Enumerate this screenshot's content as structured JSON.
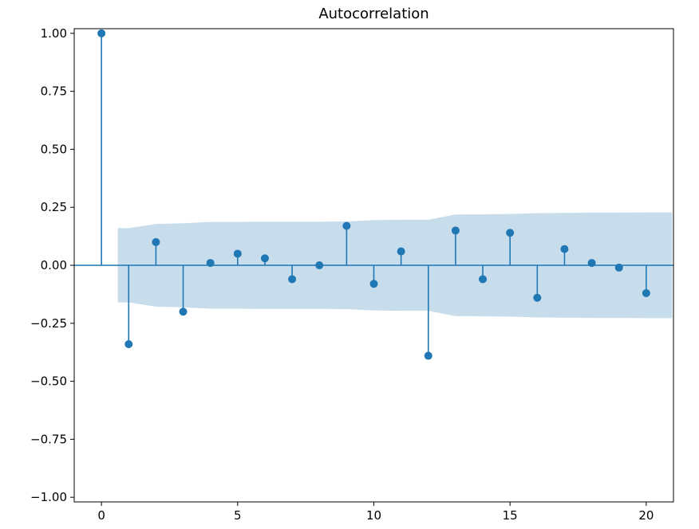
{
  "figure": {
    "background": "#ffffff"
  },
  "chart_data": {
    "type": "stem",
    "title": "Autocorrelation",
    "xlabel": "",
    "ylabel": "",
    "xlim": [
      -1.0,
      21.0
    ],
    "ylim": [
      -1.02,
      1.02
    ],
    "grid": false,
    "xticks": {
      "values": [
        0,
        5,
        10,
        15,
        20
      ],
      "labels": [
        "0",
        "5",
        "10",
        "15",
        "20"
      ]
    },
    "yticks": {
      "values": [
        1.0,
        0.75,
        0.5,
        0.25,
        0.0,
        -0.25,
        -0.5,
        -0.75,
        -1.0
      ],
      "labels": [
        "1.00",
        "0.75",
        "0.50",
        "0.25",
        "0.00",
        "−0.25",
        "−0.50",
        "−0.75",
        "−1.00"
      ]
    },
    "lags": [
      0,
      1,
      2,
      3,
      4,
      5,
      6,
      7,
      8,
      9,
      10,
      11,
      12,
      13,
      14,
      15,
      16,
      17,
      18,
      19,
      20
    ],
    "acf": [
      1.0,
      -0.34,
      0.1,
      -0.2,
      0.01,
      0.05,
      0.03,
      -0.06,
      0.0,
      0.17,
      -0.08,
      0.06,
      -0.39,
      0.15,
      -0.06,
      0.14,
      -0.14,
      0.07,
      0.01,
      -0.01,
      -0.12
    ],
    "ci_band": {
      "x": [
        0.6,
        1,
        2,
        3,
        4,
        5,
        6,
        7,
        8,
        9,
        10,
        11,
        12,
        13,
        14,
        15,
        16,
        17,
        18,
        19,
        20,
        20.95
      ],
      "upper": [
        0.16,
        0.16,
        0.178,
        0.181,
        0.187,
        0.187,
        0.188,
        0.188,
        0.188,
        0.189,
        0.195,
        0.196,
        0.196,
        0.219,
        0.22,
        0.221,
        0.225,
        0.226,
        0.227,
        0.227,
        0.228,
        0.228
      ],
      "lower": [
        -0.16,
        -0.16,
        -0.178,
        -0.181,
        -0.187,
        -0.187,
        -0.188,
        -0.188,
        -0.188,
        -0.189,
        -0.195,
        -0.196,
        -0.196,
        -0.219,
        -0.22,
        -0.221,
        -0.225,
        -0.226,
        -0.227,
        -0.227,
        -0.228,
        -0.228
      ]
    },
    "colors": {
      "line": "#1f77b4",
      "band": "rgba(31,119,180,0.25)",
      "spine": "#000000",
      "text": "#000000"
    }
  }
}
